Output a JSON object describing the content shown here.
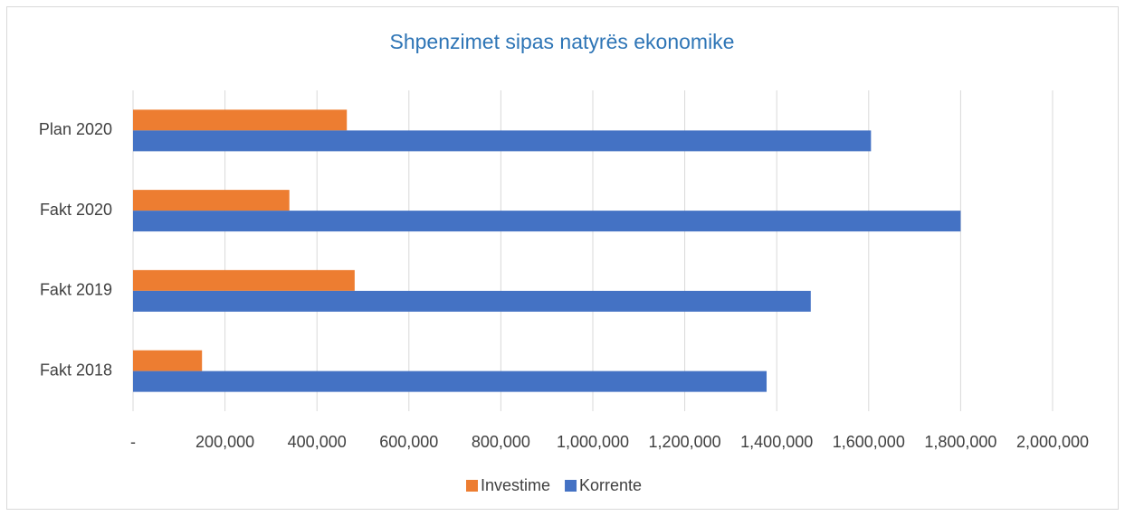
{
  "chart_data": {
    "type": "hbar",
    "title": "Shpenzimet sipas natyrës ekonomike",
    "categories": [
      "Plan 2020",
      "Fakt 2020",
      "Fakt 2019",
      "Fakt 2018"
    ],
    "series": [
      {
        "name": "Investime",
        "color": "#ed7d31",
        "values": [
          465000,
          340000,
          482000,
          150000
        ]
      },
      {
        "name": "Korrente",
        "color": "#4472c4",
        "values": [
          1605000,
          1800000,
          1474000,
          1378000
        ]
      }
    ],
    "xlim": [
      0,
      2000000
    ],
    "xticks": [
      {
        "value": 0,
        "label": "-"
      },
      {
        "value": 200000,
        "label": "200,000"
      },
      {
        "value": 400000,
        "label": "400,000"
      },
      {
        "value": 600000,
        "label": "600,000"
      },
      {
        "value": 800000,
        "label": "800,000"
      },
      {
        "value": 1000000,
        "label": "1,000,000"
      },
      {
        "value": 1200000,
        "label": "1,200,000"
      },
      {
        "value": 1400000,
        "label": "1,400,000"
      },
      {
        "value": 1600000,
        "label": "1,600,000"
      },
      {
        "value": 1800000,
        "label": "1,800,000"
      },
      {
        "value": 2000000,
        "label": "2,000,000"
      }
    ],
    "grid": true,
    "legend": "bottom"
  }
}
